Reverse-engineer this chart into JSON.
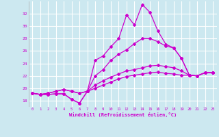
{
  "xlabel": "Windchill (Refroidissement éolien,°C)",
  "bg_color": "#cce8f0",
  "line_color": "#cc00cc",
  "grid_color": "#ffffff",
  "xlim": [
    -0.5,
    23.5
  ],
  "ylim": [
    17.0,
    34.0
  ],
  "yticks": [
    18,
    20,
    22,
    24,
    26,
    28,
    30,
    32
  ],
  "xticks": [
    0,
    1,
    2,
    3,
    4,
    5,
    6,
    7,
    8,
    9,
    10,
    11,
    12,
    13,
    14,
    15,
    16,
    17,
    18,
    19,
    20,
    21,
    22,
    23
  ],
  "line1_y": [
    19.2,
    19.0,
    19.0,
    19.1,
    19.1,
    18.2,
    17.6,
    19.5,
    24.5,
    25.2,
    26.7,
    28.0,
    31.8,
    30.2,
    33.5,
    32.2,
    29.2,
    27.1,
    26.5,
    24.8,
    22.1,
    22.0,
    22.5,
    22.5
  ],
  "line2_y": [
    19.2,
    19.0,
    19.0,
    19.1,
    19.1,
    18.2,
    17.6,
    19.5,
    22.0,
    23.0,
    24.5,
    25.5,
    26.2,
    27.2,
    28.0,
    28.0,
    27.5,
    26.8,
    26.5,
    24.8,
    22.1,
    22.0,
    22.5,
    22.5
  ],
  "line3_y": [
    19.2,
    19.0,
    19.2,
    19.5,
    19.8,
    19.5,
    19.2,
    19.5,
    20.5,
    21.2,
    21.8,
    22.3,
    22.8,
    23.0,
    23.3,
    23.6,
    23.7,
    23.5,
    23.3,
    22.8,
    22.1,
    22.0,
    22.5,
    22.5
  ],
  "line4_y": [
    19.2,
    19.0,
    19.2,
    19.5,
    19.8,
    19.5,
    19.2,
    19.5,
    20.0,
    20.5,
    21.0,
    21.5,
    21.9,
    22.1,
    22.3,
    22.5,
    22.6,
    22.4,
    22.3,
    22.1,
    22.1,
    22.0,
    22.5,
    22.5
  ]
}
